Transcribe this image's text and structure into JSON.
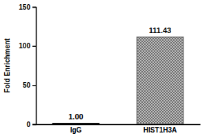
{
  "chart_data": {
    "type": "bar",
    "y_label": "Fold Enrichment",
    "categories": [
      "IgG",
      "HIST1H3A"
    ],
    "values": [
      1.0,
      111.43
    ],
    "value_labels": [
      "1.00",
      "111.43"
    ],
    "colors": [
      "#000000",
      "#6e6e6e"
    ],
    "ylim": [
      0,
      150
    ],
    "yticks": [
      0,
      50,
      100,
      150
    ],
    "grid": false,
    "data_labels": true
  }
}
